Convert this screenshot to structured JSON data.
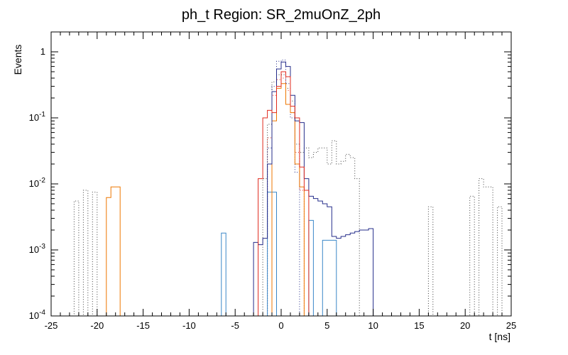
{
  "chart_data": {
    "type": "line",
    "style": "step-histogram-overlay",
    "title": "ph_t Region: SR_2muOnZ_2ph",
    "xlabel": "t [ns]",
    "ylabel": "Events",
    "xlim": [
      -25,
      25
    ],
    "ylim": [
      0.0001,
      2.0
    ],
    "yscale": "log",
    "grid": false,
    "legend": "none",
    "bin_width": 0.5,
    "x_major_ticks": [
      -25,
      -20,
      -15,
      -10,
      -5,
      0,
      5,
      10,
      15,
      20,
      25
    ],
    "x_minor_step": 1,
    "y_tick_exponents": [
      0,
      -1,
      -2,
      -3,
      -4
    ],
    "series": [
      {
        "name": "black-dotted",
        "color": "#3c3c3c",
        "line_style": "dotted",
        "bins": [
          [
            -22.5,
            -22,
            0.0055
          ],
          [
            -21.5,
            -21,
            0.008
          ],
          [
            -20.5,
            -20,
            0.0075
          ],
          [
            -2,
            -1.5,
            0.012
          ],
          [
            -1.5,
            -1,
            0.08
          ],
          [
            -1,
            -0.5,
            0.35
          ],
          [
            -0.5,
            0.5,
            0.45
          ],
          [
            0.5,
            1,
            0.28
          ],
          [
            1,
            1.5,
            0.18
          ],
          [
            1.5,
            2,
            0.04
          ],
          [
            2,
            2.5,
            0.03
          ],
          [
            2.5,
            3,
            0.035
          ],
          [
            3,
            3.5,
            0.025
          ],
          [
            3.5,
            4,
            0.03
          ],
          [
            4,
            5,
            0.035
          ],
          [
            5,
            5.5,
            0.02
          ],
          [
            5.5,
            6,
            0.045
          ],
          [
            6,
            6.5,
            0.02
          ],
          [
            6.5,
            7,
            0.022
          ],
          [
            7,
            7.5,
            0.028
          ],
          [
            7.5,
            8,
            0.025
          ],
          [
            8,
            8.5,
            0.012
          ],
          [
            16,
            16.5,
            0.0045
          ],
          [
            20.5,
            21,
            0.0065
          ],
          [
            21.5,
            22,
            0.012
          ],
          [
            22,
            23,
            0.009
          ],
          [
            23.5,
            24,
            0.0045
          ]
        ]
      },
      {
        "name": "red-dotted",
        "color": "#e02a1e",
        "line_style": "dotted",
        "bins": [
          [
            -1.5,
            -1,
            0.05
          ],
          [
            -1,
            -0.5,
            0.22
          ],
          [
            -0.5,
            0,
            0.38
          ],
          [
            0,
            0.5,
            0.4
          ],
          [
            0.5,
            1,
            0.26
          ],
          [
            1,
            1.5,
            0.12
          ],
          [
            1.5,
            2,
            0.03
          ],
          [
            2,
            2.5,
            0.008
          ]
        ]
      },
      {
        "name": "navy-dotted",
        "color": "#252d8a",
        "line_style": "dotted",
        "bins": [
          [
            -1.5,
            -1,
            0.035
          ],
          [
            -1,
            -0.5,
            0.3
          ],
          [
            -0.5,
            0,
            0.72
          ],
          [
            0,
            0.5,
            0.75
          ],
          [
            0.5,
            1,
            0.33
          ],
          [
            1,
            1.5,
            0.1
          ],
          [
            1.5,
            2,
            0.015
          ]
        ]
      },
      {
        "name": "lightblue-solid",
        "color": "#3a87c8",
        "line_style": "solid",
        "bins": [
          [
            -6.5,
            -6,
            0.0018
          ],
          [
            -1.5,
            -0.5,
            0.0075
          ],
          [
            3,
            3.5,
            0.0028
          ],
          [
            4.5,
            6,
            0.0014
          ]
        ]
      },
      {
        "name": "orange-solid",
        "color": "#ee7600",
        "line_style": "solid",
        "bins": [
          [
            -19,
            -18.5,
            0.0062
          ],
          [
            -18.5,
            -17.5,
            0.009
          ],
          [
            -1,
            -0.5,
            0.09
          ],
          [
            -0.5,
            0,
            0.28
          ],
          [
            0,
            0.5,
            0.33
          ],
          [
            0.5,
            1,
            0.16
          ],
          [
            1,
            1.5,
            0.12
          ],
          [
            1.5,
            2,
            0.02
          ],
          [
            2,
            2.5,
            0.009
          ]
        ]
      },
      {
        "name": "navy-solid",
        "color": "#252d8a",
        "line_style": "solid",
        "bins": [
          [
            -3,
            -2.5,
            0.0013
          ],
          [
            -2.5,
            -2,
            0.0012
          ],
          [
            -2,
            -1.5,
            0.0015
          ],
          [
            -1.5,
            -1,
            0.02
          ],
          [
            -1,
            -0.5,
            0.25
          ],
          [
            -0.5,
            0,
            0.55
          ],
          [
            0,
            0.5,
            0.7
          ],
          [
            0.5,
            1,
            0.6
          ],
          [
            1,
            1.5,
            0.22
          ],
          [
            1.5,
            2,
            0.09
          ],
          [
            2,
            2.5,
            0.085
          ],
          [
            2.5,
            3,
            0.012
          ],
          [
            3,
            3.5,
            0.0065
          ],
          [
            3.5,
            4,
            0.006
          ],
          [
            4,
            4.5,
            0.0055
          ],
          [
            4.5,
            5,
            0.005
          ],
          [
            5,
            5.5,
            0.0045
          ],
          [
            5.5,
            6,
            0.0016
          ],
          [
            6,
            6.5,
            0.0015
          ],
          [
            6.5,
            7,
            0.0016
          ],
          [
            7,
            7.5,
            0.0017
          ],
          [
            7.5,
            8,
            0.0018
          ],
          [
            8,
            8.5,
            0.0019
          ],
          [
            8.5,
            9,
            0.002
          ],
          [
            9,
            9.5,
            0.002
          ],
          [
            9.5,
            10,
            0.0021
          ]
        ]
      },
      {
        "name": "red-solid",
        "color": "#e02a1e",
        "line_style": "solid",
        "bins": [
          [
            -2.5,
            -2,
            0.012
          ],
          [
            -2,
            -1.5,
            0.1
          ],
          [
            -1.5,
            -1,
            0.13
          ],
          [
            -1,
            -0.5,
            0.12
          ],
          [
            -0.5,
            0,
            0.3
          ],
          [
            0,
            0.5,
            0.5
          ],
          [
            0.5,
            1,
            0.42
          ],
          [
            1,
            1.5,
            0.15
          ],
          [
            1.5,
            2,
            0.1
          ],
          [
            2,
            2.5,
            0.018
          ],
          [
            2.5,
            3,
            0.008
          ]
        ]
      }
    ]
  }
}
